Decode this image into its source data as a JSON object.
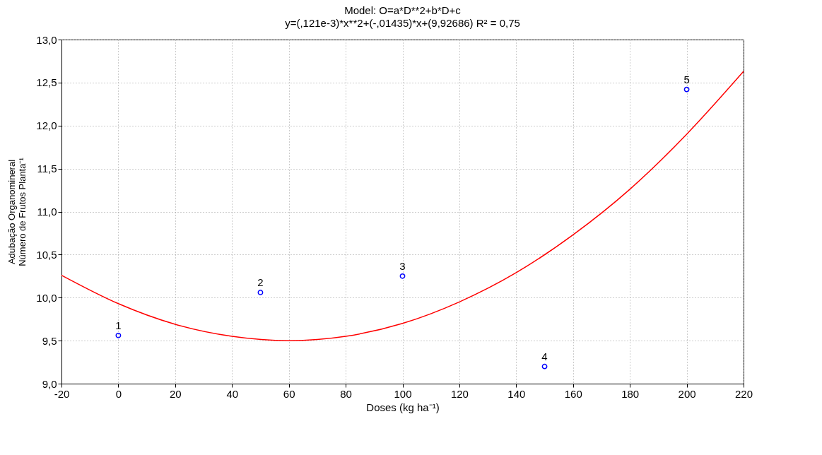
{
  "chart_data": {
    "type": "scatter",
    "title": "Model: O=a*D**2+b*D+c",
    "subtitle": "y=(,121e-3)*x**2+(-,01435)*x+(9,92686)  R² = 0,75",
    "xlabel": "Doses (kg ha⁻¹)",
    "ylabel": "Adubação Organomineral\nNúmero de Frutos Planta⁻¹",
    "series": [
      {
        "color": "#0000ff",
        "marker": "circle",
        "x": [
          0,
          50,
          100,
          150,
          200
        ],
        "values": [
          9.56,
          10.06,
          10.25,
          9.2,
          12.42
        ]
      },
      {
        "type": "line",
        "color": "#ff0000",
        "marker": "none",
        "line_style": "solid",
        "x": [
          -20,
          0,
          20,
          40,
          60,
          80,
          100,
          120,
          140,
          160,
          180,
          200,
          220
        ],
        "values": [
          10.26,
          9.93,
          9.69,
          9.55,
          9.5,
          9.55,
          9.7,
          9.95,
          10.29,
          10.73,
          11.26,
          11.9,
          12.63
        ]
      }
    ],
    "annotations": [
      {
        "text": "1",
        "x": 0,
        "y": 9.56
      },
      {
        "text": "2",
        "x": 50,
        "y": 10.06
      },
      {
        "text": "3",
        "x": 100,
        "y": 10.25
      },
      {
        "text": "4",
        "x": 150,
        "y": 9.2
      },
      {
        "text": "5",
        "x": 200,
        "y": 12.42
      }
    ],
    "xlim": [
      -20,
      220
    ],
    "xticks": [
      -20,
      0,
      20,
      40,
      60,
      80,
      100,
      120,
      140,
      160,
      180,
      200,
      220
    ],
    "ylim": [
      9,
      13
    ],
    "yticks": [
      {
        "value": 9,
        "label": "9,0"
      },
      {
        "value": 9.5,
        "label": "9,5"
      },
      {
        "value": 10,
        "label": "10,0"
      },
      {
        "value": 10.5,
        "label": "10,5"
      },
      {
        "value": 11,
        "label": "11,0"
      },
      {
        "value": 11.5,
        "label": "11,5"
      },
      {
        "value": 12,
        "label": "12,0"
      },
      {
        "value": 12.5,
        "label": "12,5"
      },
      {
        "value": 13,
        "label": "13,0"
      }
    ],
    "grid": true
  }
}
